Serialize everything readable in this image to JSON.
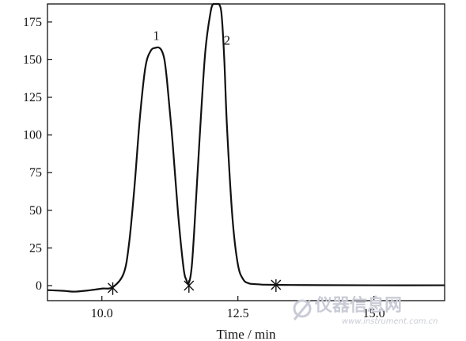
{
  "chart_data": {
    "type": "line",
    "title": "",
    "xlabel": "Time / min",
    "ylabel": "",
    "xlim": [
      9.0,
      16.3
    ],
    "ylim": [
      -10,
      187
    ],
    "x_ticks": [
      10.0,
      12.5,
      15.0
    ],
    "x_tick_labels": [
      "10.0",
      "12.5",
      "15.0"
    ],
    "y_ticks": [
      0,
      25,
      50,
      75,
      100,
      125,
      150,
      175
    ],
    "y_tick_labels": [
      "0",
      "25",
      "50",
      "75",
      "100",
      "125",
      "150",
      "175"
    ],
    "grid": false,
    "series": [
      {
        "x": [
          9.0,
          9.3,
          9.5,
          9.8,
          10.0,
          10.2,
          10.4,
          10.5,
          10.6,
          10.7,
          10.8,
          10.9,
          11.0,
          11.05,
          11.1,
          11.15,
          11.2,
          11.3,
          11.4,
          11.5,
          11.55,
          11.6,
          11.65,
          11.7,
          11.8,
          11.9,
          12.0,
          12.05,
          12.1,
          12.15,
          12.2,
          12.25,
          12.3,
          12.4,
          12.5,
          12.6,
          12.7,
          12.8,
          12.9,
          13.0,
          13.5,
          14.0,
          15.0,
          16.3
        ],
        "y": [
          -3,
          -3.5,
          -4,
          -3,
          -2,
          -1,
          8,
          28,
          66,
          112,
          145,
          156,
          158,
          158,
          156,
          150,
          135,
          95,
          48,
          12,
          4,
          2,
          12,
          38,
          100,
          155,
          182,
          187,
          187,
          187,
          180,
          150,
          105,
          45,
          14,
          4,
          1.5,
          1,
          0.8,
          0.6,
          0.4,
          0.3,
          0.2,
          0.2
        ]
      }
    ],
    "peak_labels": [
      {
        "text": "1",
        "x": 11.0,
        "y": 163
      },
      {
        "text": "2",
        "x": 12.3,
        "y": 160
      }
    ],
    "markers": [
      {
        "x": 10.2,
        "y": -1.5
      },
      {
        "x": 11.6,
        "y": 0
      },
      {
        "x": 13.2,
        "y": 0.5
      }
    ],
    "watermark": {
      "text": "仪器信息网",
      "sub": "www.instrument.com.cn"
    }
  }
}
